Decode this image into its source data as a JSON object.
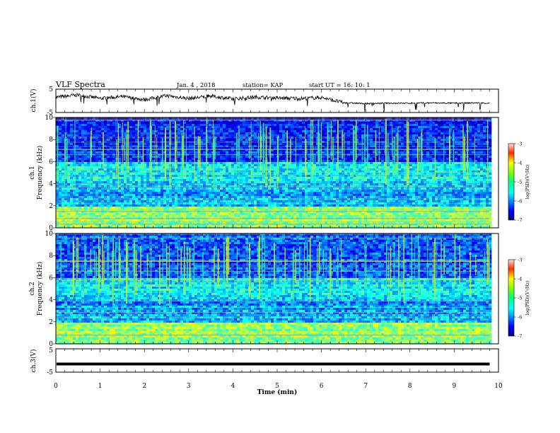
{
  "header": {
    "title": "VLF Spectra",
    "date": "Jan. 4 , 2018",
    "station": "station= KAP",
    "start": "start UT =  16: 10: 1"
  },
  "chart_data": [
    {
      "type": "line",
      "ylabel": "ch.1(V)",
      "yticks": [
        "5",
        "-5"
      ],
      "ylim": [
        -5,
        5
      ],
      "xlim": [
        0,
        10
      ],
      "description_series": {
        "x_min": [
          0,
          0.5,
          1,
          1.5,
          2,
          2.5,
          3,
          3.5,
          4,
          4.5,
          5,
          5.5,
          6,
          6.5,
          7,
          7.5,
          8,
          8.5,
          9,
          9.5,
          9.8
        ],
        "y_volts": [
          1.5,
          2.5,
          1.0,
          1.8,
          0.5,
          2.2,
          1.0,
          2.0,
          0.8,
          1.6,
          1.2,
          1.0,
          1.4,
          -0.8,
          -1.2,
          -1.0,
          -1.0,
          -0.9,
          -1.0,
          -0.9,
          -1.0
        ]
      }
    },
    {
      "type": "heatmap",
      "ylabel_line1": "ch.1",
      "ylabel_line2": "Frequency (kHz)",
      "yticks": [
        "0",
        "2",
        "4",
        "6",
        "8",
        "10"
      ],
      "ylim": [
        0,
        10
      ],
      "xlim": [
        0,
        10
      ],
      "colorbar": {
        "label": "log(PSD)(V²/Hz)",
        "ticks": [
          "-3",
          "-4",
          "-5",
          "-6",
          "-7"
        ],
        "range": [
          -7,
          -3
        ]
      }
    },
    {
      "type": "heatmap",
      "ylabel_line1": "ch.2",
      "ylabel_line2": "Frequency (kHz)",
      "yticks": [
        "0",
        "2",
        "4",
        "6",
        "8",
        "10"
      ],
      "ylim": [
        0,
        10
      ],
      "xlim": [
        0,
        10
      ],
      "colorbar": {
        "label": "log(PSD)(V²/Hz)",
        "ticks": [
          "-3",
          "-4",
          "-5",
          "-6",
          "-7"
        ],
        "range": [
          -7,
          -3
        ]
      }
    },
    {
      "type": "line",
      "ylabel": "ch.3(V)",
      "yticks": [
        "5",
        "-5"
      ],
      "ylim": [
        -5,
        5
      ],
      "xlim": [
        0,
        10
      ],
      "level_volts": -1.5,
      "xticks": [
        "0",
        "1",
        "2",
        "3",
        "4",
        "5",
        "6",
        "7",
        "8",
        "9",
        "10"
      ],
      "xlabel": "Time (min)"
    }
  ]
}
